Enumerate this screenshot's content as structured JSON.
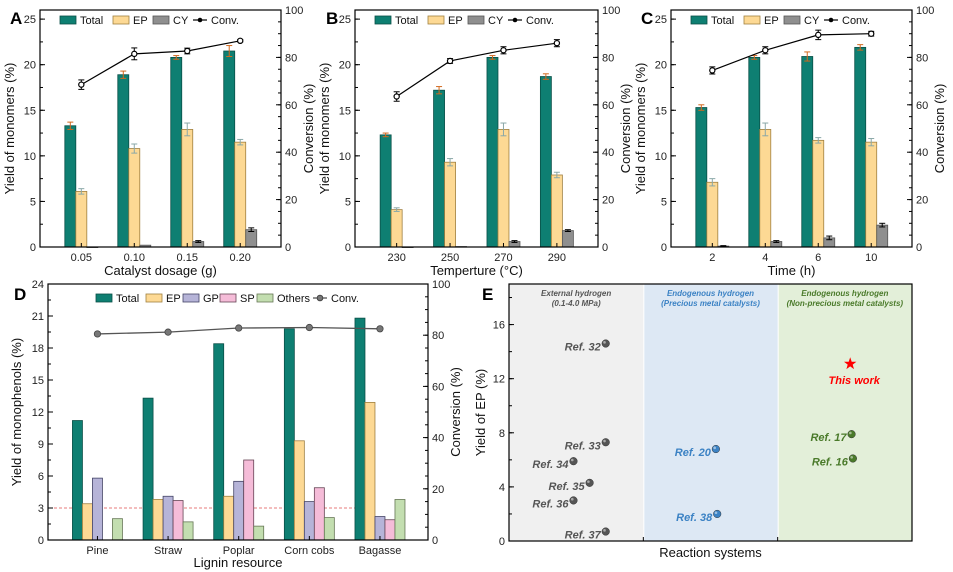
{
  "colors": {
    "total": "#0e7f72",
    "ep": "#fdd994",
    "cy": "#8f8f8f",
    "gp": "#b6b4d8",
    "sp": "#f5bcd8",
    "others": "#c3deb0",
    "conv": "#000000",
    "convD": "#555555",
    "errTotal": "#d2691e",
    "errEP": "#8aa8a8",
    "errCY": "#000000",
    "refGray": "#555555",
    "refBlue": "#3b82c4",
    "refGreen": "#4a7a2a",
    "thisWork": "#ff0000",
    "bgGray": "#f0f0f0",
    "bgBlue": "#dde8f4",
    "bgGreen": "#e3efd9",
    "dashLine": "#e05050"
  },
  "chart_data": [
    {
      "id": "A",
      "panel_label": "A",
      "type": "bar",
      "xlabel": "Catalyst dosage (g)",
      "ylabel": "Yield of monomers (%)",
      "y2label": "Conversion (%)",
      "ylim": [
        0,
        26
      ],
      "yticks": [
        0,
        5,
        10,
        15,
        20,
        25
      ],
      "y2lim": [
        0,
        100
      ],
      "y2ticks": [
        0,
        20,
        40,
        60,
        80,
        100
      ],
      "categories": [
        "0.05",
        "0.10",
        "0.15",
        "0.20"
      ],
      "legend": [
        "Total",
        "EP",
        "CY",
        "Conv."
      ],
      "legend_position": "top",
      "series": [
        {
          "name": "Total",
          "values": [
            13.3,
            18.9,
            20.8,
            21.5
          ],
          "errors": [
            0.4,
            0.4,
            0.2,
            0.6
          ]
        },
        {
          "name": "EP",
          "values": [
            6.1,
            10.8,
            12.9,
            11.5
          ],
          "errors": [
            0.3,
            0.5,
            0.7,
            0.3
          ]
        },
        {
          "name": "CY",
          "values": [
            0.0,
            0.2,
            0.6,
            1.9
          ],
          "errors": [
            0.0,
            0.0,
            0.1,
            0.2
          ]
        },
        {
          "name": "Conv.",
          "axis": "right",
          "values": [
            68.5,
            81.5,
            82.7,
            87.0
          ],
          "errors": [
            2.0,
            2.5,
            1.2,
            0.5
          ]
        }
      ]
    },
    {
      "id": "B",
      "panel_label": "B",
      "type": "bar",
      "xlabel": "Temperture (°C)",
      "ylabel": "Yield of monomers (%)",
      "y2label": "Conversion (%)",
      "ylim": [
        0,
        26
      ],
      "yticks": [
        0,
        5,
        10,
        15,
        20,
        25
      ],
      "y2lim": [
        0,
        100
      ],
      "y2ticks": [
        0,
        20,
        40,
        60,
        80,
        100
      ],
      "categories": [
        "230",
        "250",
        "270",
        "290"
      ],
      "legend": [
        "Total",
        "EP",
        "CY",
        "Conv."
      ],
      "legend_position": "top",
      "series": [
        {
          "name": "Total",
          "values": [
            12.3,
            17.2,
            20.8,
            18.7
          ],
          "errors": [
            0.2,
            0.4,
            0.2,
            0.3
          ]
        },
        {
          "name": "EP",
          "values": [
            4.1,
            9.3,
            12.9,
            7.9
          ],
          "errors": [
            0.2,
            0.4,
            0.7,
            0.3
          ]
        },
        {
          "name": "CY",
          "values": [
            0.0,
            0.05,
            0.6,
            1.8
          ],
          "errors": [
            0.0,
            0.0,
            0.1,
            0.1
          ]
        },
        {
          "name": "Conv.",
          "axis": "right",
          "values": [
            63.5,
            78.5,
            83.0,
            86.0
          ],
          "errors": [
            2.0,
            1.0,
            1.5,
            1.5
          ]
        }
      ]
    },
    {
      "id": "C",
      "panel_label": "C",
      "type": "bar",
      "xlabel": "Time (h)",
      "ylabel": "Yield of monomers (%)",
      "y2label": "Conversion (%)",
      "ylim": [
        0,
        26
      ],
      "yticks": [
        0,
        5,
        10,
        15,
        20,
        25
      ],
      "y2lim": [
        0,
        100
      ],
      "y2ticks": [
        0,
        20,
        40,
        60,
        80,
        100
      ],
      "categories": [
        "2",
        "4",
        "6",
        "10"
      ],
      "legend": [
        "Total",
        "EP",
        "CY",
        "Conv."
      ],
      "legend_position": "top",
      "series": [
        {
          "name": "Total",
          "values": [
            15.3,
            20.8,
            20.9,
            21.9
          ],
          "errors": [
            0.3,
            0.2,
            0.5,
            0.3
          ]
        },
        {
          "name": "EP",
          "values": [
            7.1,
            12.9,
            11.7,
            11.5
          ],
          "errors": [
            0.4,
            0.7,
            0.3,
            0.4
          ]
        },
        {
          "name": "CY",
          "values": [
            0.1,
            0.6,
            1.0,
            2.4
          ],
          "errors": [
            0.05,
            0.1,
            0.2,
            0.2
          ]
        },
        {
          "name": "Conv.",
          "axis": "right",
          "values": [
            74.5,
            83.0,
            89.5,
            90.0
          ],
          "errors": [
            1.5,
            1.5,
            2.0,
            1.0
          ]
        }
      ]
    },
    {
      "id": "D",
      "panel_label": "D",
      "type": "bar",
      "xlabel": "Lignin resource",
      "ylabel": "Yield of monophenols (%)",
      "y2label": "Conversion (%)",
      "ylim": [
        0,
        24
      ],
      "yticks": [
        0,
        3,
        6,
        9,
        12,
        15,
        18,
        21,
        24
      ],
      "y2lim": [
        0,
        100
      ],
      "y2ticks": [
        0,
        20,
        40,
        60,
        80,
        100
      ],
      "categories": [
        "Pine",
        "Straw",
        "Poplar",
        "Corn cobs",
        "Bagasse"
      ],
      "legend": [
        "Total",
        "EP",
        "GP",
        "SP",
        "Others",
        "Conv."
      ],
      "legend_position": "top",
      "reference_line": {
        "value": 3,
        "style": "dashed"
      },
      "series": [
        {
          "name": "Total",
          "values": [
            11.2,
            13.3,
            18.4,
            19.8,
            20.8
          ]
        },
        {
          "name": "EP",
          "values": [
            3.4,
            3.8,
            4.1,
            9.3,
            12.9
          ]
        },
        {
          "name": "GP",
          "values": [
            5.8,
            4.1,
            5.5,
            3.6,
            2.2
          ]
        },
        {
          "name": "SP",
          "values": [
            0,
            3.7,
            7.5,
            4.9,
            1.9
          ]
        },
        {
          "name": "Others",
          "values": [
            2.0,
            1.7,
            1.3,
            2.1,
            3.8
          ]
        },
        {
          "name": "Conv.",
          "axis": "right",
          "values": [
            80.5,
            81.2,
            82.8,
            83.0,
            82.5
          ]
        }
      ]
    },
    {
      "id": "E",
      "panel_label": "E",
      "type": "scatter",
      "xlabel": "Reaction systems",
      "ylabel": "Yield of EP (%)",
      "ylim": [
        0,
        19
      ],
      "yticks": [
        0,
        4,
        8,
        12,
        16
      ],
      "groups": [
        {
          "title": "External hydrogen",
          "subtitle": "(0.1-4.0 MPa)",
          "color_key": "refGray",
          "bg_key": "bgGray"
        },
        {
          "title": "Endogenous hydrogen",
          "subtitle": "(Precious metal catalysts)",
          "color_key": "refBlue",
          "bg_key": "bgBlue"
        },
        {
          "title": "Endogenous hydrogen",
          "subtitle": "(Non-precious metal catalysts)",
          "color_key": "refGreen",
          "bg_key": "bgGreen"
        }
      ],
      "points": [
        {
          "label": "Ref. 32",
          "group": 0,
          "xpos": 0.72,
          "y": 14.6,
          "marker": "sphere"
        },
        {
          "label": "Ref. 33",
          "group": 0,
          "xpos": 0.72,
          "y": 7.3,
          "marker": "sphere"
        },
        {
          "label": "Ref. 34",
          "group": 0,
          "xpos": 0.48,
          "y": 5.9,
          "marker": "sphere"
        },
        {
          "label": "Ref. 35",
          "group": 0,
          "xpos": 0.6,
          "y": 4.3,
          "marker": "sphere"
        },
        {
          "label": "Ref. 36",
          "group": 0,
          "xpos": 0.48,
          "y": 3.0,
          "marker": "sphere"
        },
        {
          "label": "Ref. 37",
          "group": 0,
          "xpos": 0.72,
          "y": 0.7,
          "marker": "sphere"
        },
        {
          "label": "Ref. 20",
          "group": 1,
          "xpos": 0.54,
          "y": 6.8,
          "marker": "sphere"
        },
        {
          "label": "Ref. 38",
          "group": 1,
          "xpos": 0.55,
          "y": 2.0,
          "marker": "sphere"
        },
        {
          "label": "This work",
          "group": 2,
          "xpos": 0.54,
          "y": 13.1,
          "marker": "star"
        },
        {
          "label": "Ref. 17",
          "group": 2,
          "xpos": 0.55,
          "y": 7.9,
          "marker": "sphere"
        },
        {
          "label": "Ref. 16",
          "group": 2,
          "xpos": 0.56,
          "y": 6.1,
          "marker": "sphere"
        }
      ]
    }
  ]
}
